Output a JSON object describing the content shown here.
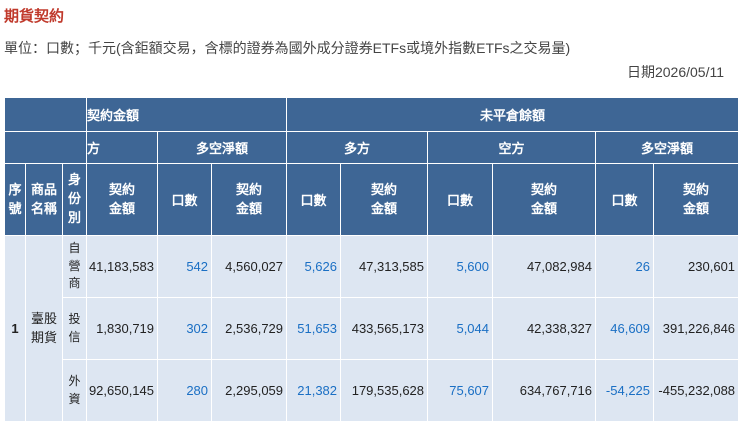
{
  "page": {
    "title": "期貨契約",
    "unit_note": "單位：口數；千元(含鉅額交易，含標的證券為國外成分證券ETFs或境外指數ETFs之交易量)",
    "date_label": "日期2026/05/11"
  },
  "table": {
    "header": {
      "group_trade_partial": "契約金額",
      "group_oi": "未平倉餘額",
      "trade_long_partial": "方",
      "trade_net": "多空淨額",
      "oi_long": "多方",
      "oi_short": "空方",
      "oi_net": "多空淨額",
      "seq": "序號",
      "product": "商品名稱",
      "identity": "身份別",
      "contract_amount": "契約金額",
      "lots": "口數"
    },
    "seq": "1",
    "product": "臺股期貨",
    "rows": [
      {
        "identity": "自營商",
        "trade_long_amount": "41,183,583",
        "trade_net_lots": "542",
        "trade_net_amount": "4,560,027",
        "oi_long_lots": "5,626",
        "oi_long_amount": "47,313,585",
        "oi_short_lots": "5,600",
        "oi_short_amount": "47,082,984",
        "oi_net_lots": "26",
        "oi_net_amount": "230,601"
      },
      {
        "identity": "投信",
        "trade_long_amount": "1,830,719",
        "trade_net_lots": "302",
        "trade_net_amount": "2,536,729",
        "oi_long_lots": "51,653",
        "oi_long_amount": "433,565,173",
        "oi_short_lots": "5,044",
        "oi_short_amount": "42,338,327",
        "oi_net_lots": "46,609",
        "oi_net_amount": "391,226,846"
      },
      {
        "identity": "外資",
        "trade_long_amount": "92,650,145",
        "trade_net_lots": "280",
        "trade_net_amount": "2,295,059",
        "oi_long_lots": "21,382",
        "oi_long_amount": "179,535,628",
        "oi_short_lots": "75,607",
        "oi_short_amount": "634,767,716",
        "oi_net_lots": "-54,225",
        "oi_net_amount": "-455,232,088"
      }
    ]
  }
}
